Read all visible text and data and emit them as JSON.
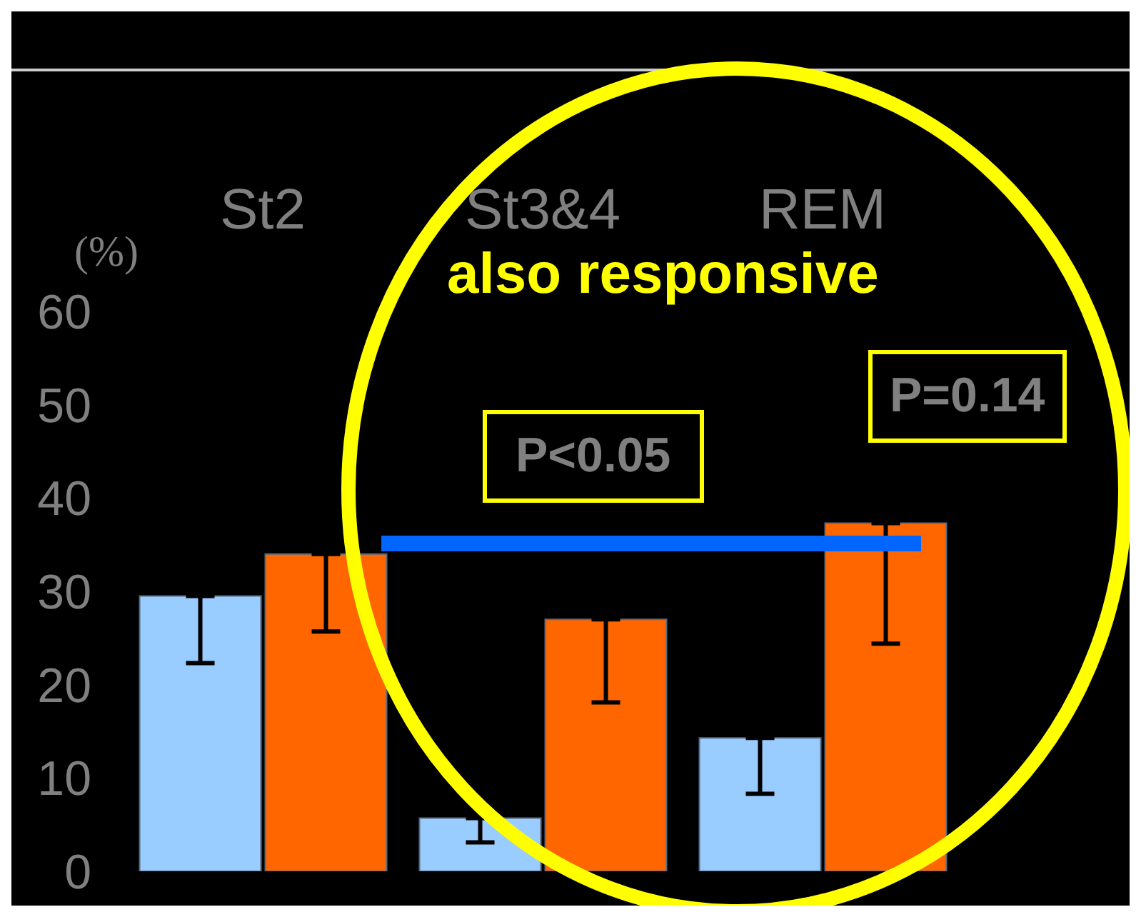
{
  "chart_data": {
    "type": "bar",
    "ylabel": "(%)",
    "categories": [
      "St2",
      "St3&4",
      "REM"
    ],
    "series": [
      {
        "color": "#99ccff",
        "values": [
          29.5,
          5.7,
          14.3
        ],
        "errors": [
          [
            22.3,
            29.5
          ],
          [
            3.1,
            5.7
          ],
          [
            8.3,
            14.3
          ]
        ]
      },
      {
        "color": "#ff6600",
        "values": [
          34,
          27,
          37.3
        ],
        "errors": [
          [
            25.7,
            34
          ],
          [
            18.1,
            27
          ],
          [
            24.4,
            37.3
          ]
        ]
      }
    ],
    "ylim": [
      0,
      60
    ],
    "yticks": [
      0,
      10,
      20,
      30,
      40,
      50,
      60
    ],
    "annotations": [
      "also responsive",
      "P<0.05",
      "P=0.14"
    ]
  }
}
